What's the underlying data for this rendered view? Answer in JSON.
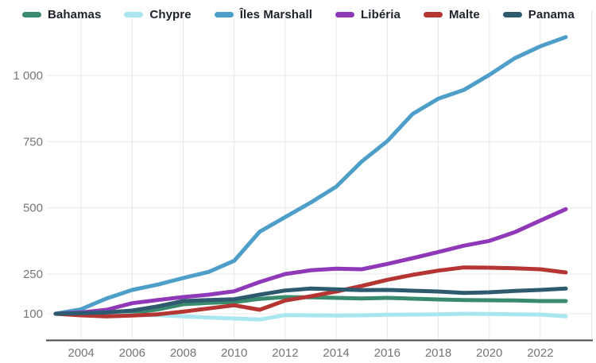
{
  "legend": {
    "items": [
      {
        "label": "Bahamas",
        "color": "#3a8a6d"
      },
      {
        "label": "Chypre",
        "color": "#a9e6f0"
      },
      {
        "label": "Îles Marshall",
        "color": "#4d9fc9"
      },
      {
        "label": "Libéria",
        "color": "#8f38b8"
      },
      {
        "label": "Malte",
        "color": "#b43531"
      },
      {
        "label": "Panama",
        "color": "#2d5a6e"
      }
    ]
  },
  "chart_data": {
    "type": "line",
    "title": "",
    "xlabel": "",
    "ylabel": "",
    "grid": true,
    "legend_position": "top-left",
    "x": [
      2003,
      2004,
      2005,
      2006,
      2007,
      2008,
      2009,
      2010,
      2011,
      2012,
      2013,
      2014,
      2015,
      2016,
      2017,
      2018,
      2019,
      2020,
      2021,
      2022,
      2023
    ],
    "series": [
      {
        "name": "Bahamas",
        "color": "#3a8a6d",
        "values": [
          100,
          100,
          98,
          104,
          116,
          136,
          141,
          144,
          156,
          163,
          162,
          160,
          158,
          160,
          157,
          154,
          152,
          151,
          150,
          148,
          148
        ]
      },
      {
        "name": "Chypre",
        "color": "#a9e6f0",
        "values": [
          100,
          97,
          94,
          95,
          95,
          90,
          86,
          82,
          78,
          95,
          94,
          93,
          94,
          96,
          97,
          98,
          100,
          99,
          98,
          97,
          90
        ]
      },
      {
        "name": "Îles Marshall",
        "color": "#4d9fc9",
        "values": [
          100,
          117,
          158,
          190,
          210,
          235,
          258,
          300,
          410,
          465,
          520,
          580,
          675,
          752,
          855,
          912,
          945,
          1002,
          1065,
          1110,
          1145
        ]
      },
      {
        "name": "Libéria",
        "color": "#8f38b8",
        "values": [
          100,
          105,
          115,
          140,
          152,
          163,
          172,
          185,
          220,
          250,
          264,
          270,
          268,
          288,
          310,
          333,
          357,
          375,
          408,
          452,
          495
        ]
      },
      {
        "name": "Malte",
        "color": "#b43531",
        "values": [
          100,
          94,
          90,
          93,
          98,
          108,
          120,
          132,
          115,
          150,
          166,
          184,
          205,
          228,
          247,
          263,
          275,
          274,
          272,
          268,
          256
        ]
      },
      {
        "name": "Panama",
        "color": "#2d5a6e",
        "values": [
          100,
          102,
          105,
          112,
          128,
          148,
          152,
          155,
          172,
          188,
          195,
          192,
          189,
          190,
          187,
          184,
          179,
          181,
          186,
          190,
          195
        ]
      }
    ],
    "x_ticks": [
      2004,
      2006,
      2008,
      2010,
      2012,
      2014,
      2016,
      2018,
      2020,
      2022
    ],
    "y_ticks": [
      {
        "value": 100,
        "label": "100"
      },
      {
        "value": 250,
        "label": "250"
      },
      {
        "value": 500,
        "label": "500"
      },
      {
        "value": 750,
        "label": "750"
      },
      {
        "value": 1000,
        "label": "1 000"
      }
    ],
    "xlim": [
      2003,
      2024
    ],
    "ylim": [
      0,
      1240
    ]
  }
}
